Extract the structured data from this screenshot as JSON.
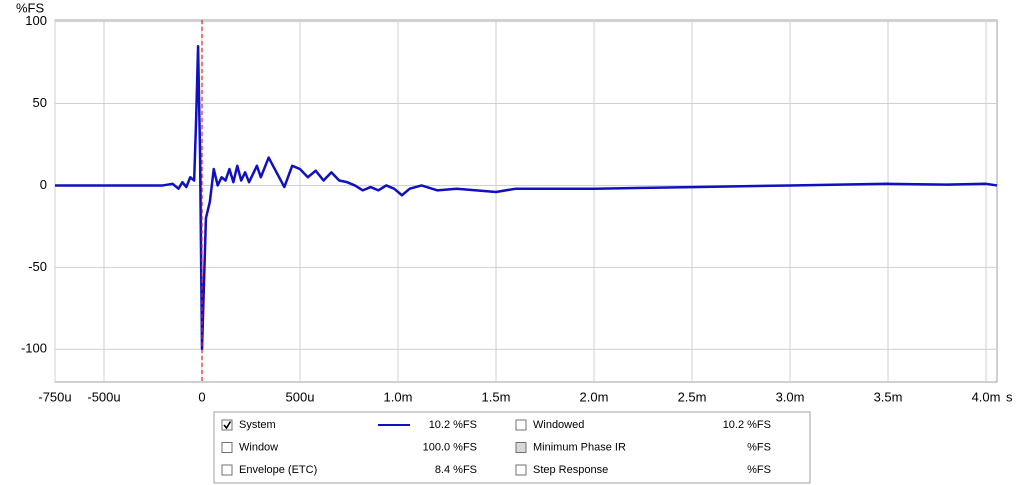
{
  "chart_data": {
    "type": "line",
    "y_label": "%FS",
    "x_label": "s",
    "x": [
      -0.00075,
      -0.0002,
      -0.00015,
      -0.00012,
      -0.0001,
      -8e-05,
      -6e-05,
      -4e-05,
      -3e-05,
      -2e-05,
      -1e-05,
      0,
      1e-05,
      2e-05,
      4e-05,
      6e-05,
      8e-05,
      0.0001,
      0.00012,
      0.00014,
      0.00016,
      0.00018,
      0.0002,
      0.00022,
      0.00024,
      0.00028,
      0.0003,
      0.00034,
      0.00038,
      0.00042,
      0.00046,
      0.0005,
      0.00054,
      0.00058,
      0.00062,
      0.00066,
      0.0007,
      0.00074,
      0.00078,
      0.00082,
      0.00086,
      0.0009,
      0.00094,
      0.00098,
      0.00102,
      0.00106,
      0.00112,
      0.0012,
      0.0013,
      0.0014,
      0.0015,
      0.0016,
      0.002,
      0.0025,
      0.003,
      0.0035,
      0.0038,
      0.004,
      0.004056
    ],
    "series": [
      {
        "color": "#1010c0",
        "values": [
          0,
          0,
          1,
          -2,
          2,
          -1,
          5,
          3,
          40,
          85,
          20,
          -100,
          -60,
          -20,
          -10,
          10,
          0,
          5,
          3,
          10,
          2,
          12,
          3,
          8,
          2,
          12,
          5,
          17,
          8,
          -1,
          12,
          10,
          5,
          9,
          3,
          8,
          3,
          2,
          0,
          -3,
          -1,
          -3,
          0,
          -2,
          -6,
          -2,
          0,
          -3,
          -2,
          -3,
          -4,
          -2,
          -2,
          -1,
          0,
          1,
          0.5,
          1,
          0
        ]
      }
    ],
    "xlim": [
      -0.00075,
      0.004056
    ],
    "ylim": [
      -120,
      101
    ],
    "xticks": [
      {
        "value": -0.00075,
        "label": "-750u"
      },
      {
        "value": -0.0005,
        "label": "-500u"
      },
      0,
      {
        "value": 0.0005,
        "label": "500u"
      },
      {
        "value": 0.001,
        "label": "1.0m"
      },
      {
        "value": 0.0015,
        "label": "1.5m"
      },
      {
        "value": 0.002,
        "label": "2.0m"
      },
      {
        "value": 0.0025,
        "label": "2.5m"
      },
      {
        "value": 0.003,
        "label": "3.0m"
      },
      {
        "value": 0.0035,
        "label": "3.5m"
      },
      {
        "value": 0.004,
        "label": "4.0m"
      }
    ],
    "yticks": [
      100,
      50,
      0,
      -50,
      -100
    ],
    "grid": true,
    "marker_x": 0,
    "marker_color": "#e02020"
  },
  "panel": {
    "items": [
      {
        "name": "System",
        "value": "10.2 %FS",
        "checked": true,
        "enabled": true,
        "color": "#1010a0",
        "value_color": "#1010a0",
        "line": true
      },
      {
        "name": "Windowed",
        "value": "10.2 %FS",
        "checked": false,
        "enabled": true,
        "color": "#1010a0",
        "value_color": "#1010a0",
        "line": false
      },
      {
        "name": "Window",
        "value": "100.0 %FS",
        "checked": false,
        "enabled": true,
        "color": "#1010a0",
        "value_color": "#1010a0",
        "line": false
      },
      {
        "name": "Minimum Phase IR",
        "value": "%FS",
        "checked": false,
        "enabled": false,
        "color": "#909090",
        "value_color": "#909090",
        "line": false
      },
      {
        "name": "Envelope (ETC)",
        "value": "8.4 %FS",
        "checked": false,
        "enabled": true,
        "color": "#202020",
        "value_color": "#202020",
        "line": false
      },
      {
        "name": "Step Response",
        "value": "%FS",
        "checked": false,
        "enabled": true,
        "color": "#202020",
        "value_color": "#202020",
        "line": false
      }
    ]
  }
}
